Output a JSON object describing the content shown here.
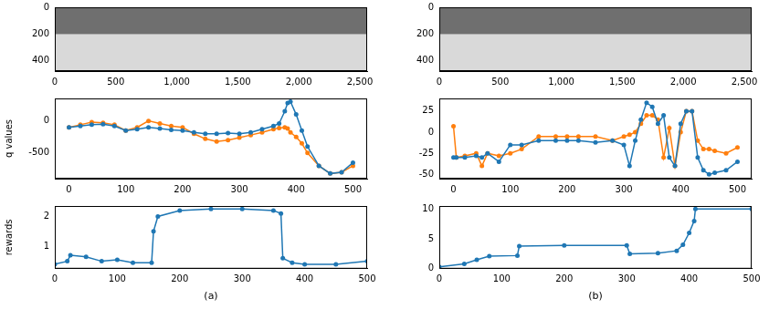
{
  "chart_data": [
    {
      "type": "image",
      "xlim": [
        0,
        2560
      ],
      "ylim": [
        480,
        0
      ],
      "xticks": [
        0,
        500,
        1000,
        1500,
        2000,
        2500
      ],
      "yticks": [
        0,
        200,
        400
      ]
    },
    {
      "type": "line",
      "ylabel": "q values",
      "marker": "o",
      "line_style": "solid",
      "xlim": [
        -25,
        525
      ],
      "ylim": [
        -900,
        350
      ],
      "xticks": [
        0,
        100,
        200,
        300,
        400,
        500
      ],
      "yticks": [
        -500,
        0
      ],
      "x": [
        0,
        20,
        40,
        60,
        80,
        100,
        120,
        140,
        160,
        180,
        200,
        220,
        240,
        260,
        280,
        300,
        320,
        340,
        360,
        370,
        380,
        385,
        390,
        400,
        410,
        420,
        440,
        460,
        480,
        500
      ],
      "series": [
        {
          "color": "#1f77b4",
          "values": [
            -100,
            -80,
            -60,
            -50,
            -80,
            -150,
            -130,
            -100,
            -120,
            -140,
            -150,
            -180,
            -200,
            -200,
            -190,
            -200,
            -180,
            -130,
            -80,
            -40,
            150,
            280,
            300,
            100,
            -150,
            -400,
            -700,
            -820,
            -800,
            -650
          ]
        },
        {
          "color": "#ff7f0e",
          "values": [
            -100,
            -60,
            -20,
            -30,
            -60,
            -150,
            -100,
            0,
            -40,
            -80,
            -100,
            -200,
            -280,
            -320,
            -300,
            -260,
            -220,
            -180,
            -130,
            -110,
            -100,
            -120,
            -180,
            -250,
            -350,
            -500,
            -700,
            -820,
            -800,
            -700
          ]
        }
      ]
    },
    {
      "type": "line",
      "ylabel": "rewards",
      "xlabel": "(a)",
      "marker": "o",
      "line_style": "solid",
      "color": "#1f77b4",
      "xlim": [
        0,
        500
      ],
      "ylim": [
        0.25,
        2.35
      ],
      "xticks": [
        0,
        100,
        200,
        300,
        400,
        500
      ],
      "yticks": [
        1,
        2
      ],
      "x": [
        0,
        20,
        25,
        50,
        75,
        100,
        125,
        155,
        158,
        165,
        200,
        250,
        300,
        350,
        362,
        365,
        380,
        400,
        450,
        500
      ],
      "values": [
        0.4,
        0.5,
        0.7,
        0.65,
        0.5,
        0.55,
        0.45,
        0.45,
        1.5,
        2.0,
        2.2,
        2.25,
        2.25,
        2.2,
        2.1,
        0.6,
        0.45,
        0.4,
        0.4,
        0.5
      ]
    },
    {
      "type": "image",
      "xlim": [
        0,
        2560
      ],
      "ylim": [
        480,
        0
      ],
      "xticks": [
        0,
        500,
        1000,
        1500,
        2000,
        2500
      ],
      "yticks": [
        0,
        200,
        400
      ]
    },
    {
      "type": "line",
      "marker": "o",
      "line_style": "solid",
      "xlim": [
        -25,
        525
      ],
      "ylim": [
        -55,
        40
      ],
      "xticks": [
        0,
        100,
        200,
        300,
        400,
        500
      ],
      "yticks": [
        -50,
        -25,
        0,
        25
      ],
      "x": [
        0,
        5,
        20,
        40,
        50,
        60,
        80,
        100,
        120,
        150,
        180,
        200,
        220,
        250,
        280,
        300,
        310,
        320,
        330,
        340,
        350,
        360,
        370,
        380,
        390,
        400,
        410,
        420,
        430,
        440,
        450,
        460,
        480,
        500
      ],
      "series": [
        {
          "color": "#1f77b4",
          "values": [
            -30,
            -30,
            -30,
            -28,
            -30,
            -25,
            -35,
            -15,
            -15,
            -10,
            -10,
            -10,
            -10,
            -12,
            -10,
            -15,
            -40,
            -10,
            15,
            35,
            30,
            10,
            20,
            -30,
            -40,
            10,
            25,
            25,
            -30,
            -45,
            -50,
            -48,
            -45,
            -35
          ]
        },
        {
          "color": "#ff7f0e",
          "values": [
            7,
            -30,
            -28,
            -25,
            -40,
            -25,
            -28,
            -25,
            -20,
            -5,
            -5,
            -5,
            -5,
            -5,
            -10,
            -5,
            -3,
            0,
            10,
            20,
            20,
            15,
            -30,
            5,
            -40,
            0,
            25,
            25,
            -10,
            -20,
            -20,
            -22,
            -25,
            -18
          ]
        }
      ]
    },
    {
      "type": "line",
      "xlabel": "(b)",
      "marker": "o",
      "line_style": "solid",
      "color": "#1f77b4",
      "xlim": [
        0,
        500
      ],
      "ylim": [
        0,
        10.5
      ],
      "xticks": [
        0,
        100,
        200,
        300,
        400,
        500
      ],
      "yticks": [
        0,
        5,
        10
      ],
      "x": [
        0,
        40,
        60,
        80,
        125,
        128,
        200,
        300,
        305,
        350,
        380,
        390,
        400,
        408,
        410,
        500
      ],
      "values": [
        0.3,
        0.8,
        1.5,
        2.1,
        2.2,
        3.8,
        3.9,
        3.9,
        2.5,
        2.6,
        3.0,
        4,
        6,
        8,
        10,
        10
      ]
    }
  ]
}
